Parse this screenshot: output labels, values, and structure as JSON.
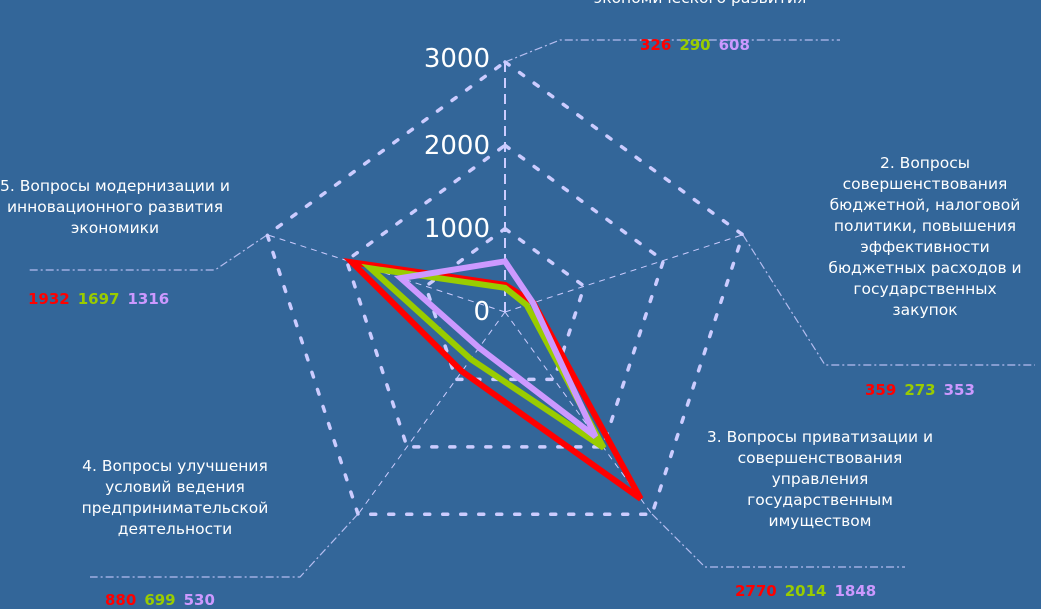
{
  "colors": {
    "background": "#336699",
    "grid": "#ccccff",
    "series": [
      "#ff0000",
      "#99cc00",
      "#cc99ff"
    ]
  },
  "chart_data": {
    "type": "radar",
    "rlim": [
      0,
      3000
    ],
    "tick_labels": [
      "0",
      "1000",
      "2000",
      "3000"
    ],
    "categories": [
      "экономического развития",
      "2. Вопросы совершенствования бюджетной, налоговой политики, повышения эффективности бюджетных расходов и государственных закупок",
      "3. Вопросы приватизации и совершенствования управления государственным имуществом",
      "4. Вопросы улучшения условий ведения предпринимательской деятельности",
      "5. Вопросы модернизации и инновационного развития экономики"
    ],
    "series": [
      {
        "color": "#ff0000",
        "values": [
          326,
          359,
          2770,
          880,
          1932
        ]
      },
      {
        "color": "#99cc00",
        "values": [
          290,
          273,
          2014,
          699,
          1697
        ]
      },
      {
        "color": "#cc99ff",
        "values": [
          608,
          353,
          1848,
          530,
          1316
        ]
      }
    ],
    "value_labels": [
      [
        "326",
        "290",
        "608"
      ],
      [
        "359",
        "273",
        "353"
      ],
      [
        "2770",
        "2014",
        "1848"
      ],
      [
        "880",
        "699",
        "530"
      ],
      [
        "1932",
        "1697",
        "1316"
      ]
    ]
  }
}
